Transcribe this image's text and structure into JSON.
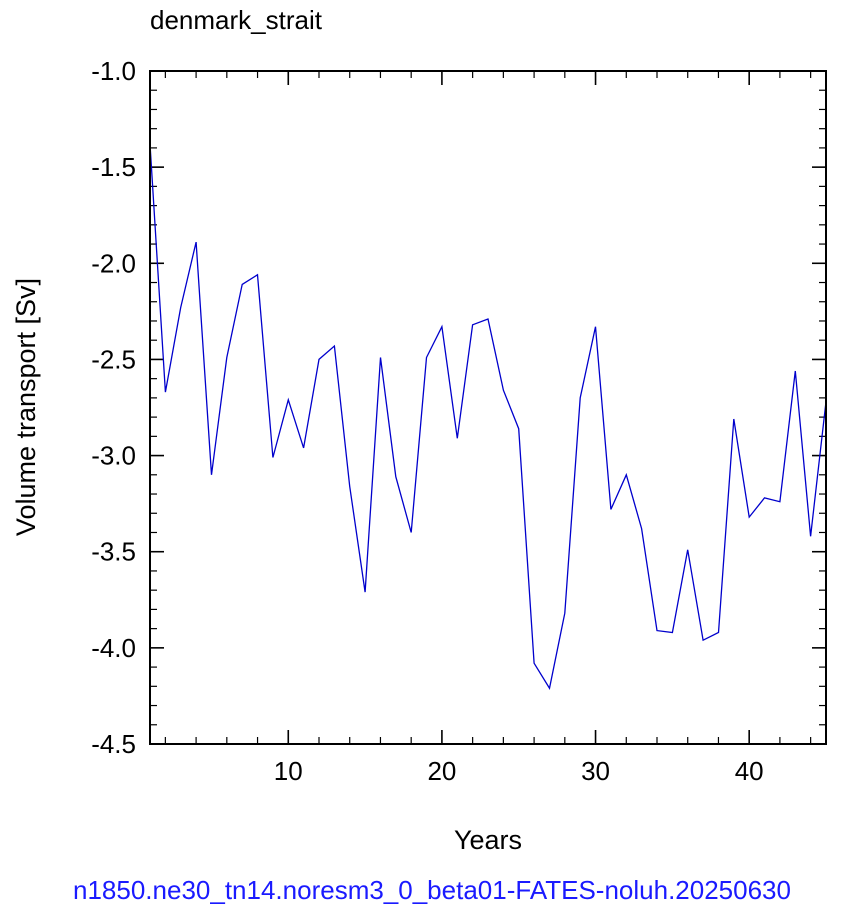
{
  "chart_data": {
    "type": "line",
    "title": "denmark_strait",
    "xlabel": "Years",
    "ylabel": "Volume transport [Sv]",
    "footer": "n1850.ne30_tn14.noresm3_0_beta01-FATES-noluh.20250630",
    "xlim": [
      1,
      45
    ],
    "ylim": [
      -4.5,
      -1.0
    ],
    "x_ticks": [
      10,
      20,
      30,
      40
    ],
    "y_ticks": [
      -1.0,
      -1.5,
      -2.0,
      -2.5,
      -3.0,
      -3.5,
      -4.0,
      -4.5
    ],
    "x_tick_labels": [
      "10",
      "20",
      "30",
      "40"
    ],
    "y_tick_labels": [
      "-1.0",
      "-1.5",
      "-2.0",
      "-2.5",
      "-3.0",
      "-3.5",
      "-4.0",
      "-4.5"
    ],
    "grid": false,
    "line_color": "#0000cc",
    "series": [
      {
        "x": [
          1,
          2,
          3,
          4,
          5,
          6,
          7,
          8,
          9,
          10,
          11,
          12,
          13,
          14,
          15,
          16,
          17,
          18,
          19,
          20,
          21,
          22,
          23,
          24,
          25,
          26,
          27,
          28,
          29,
          30,
          31,
          32,
          33,
          34,
          35,
          36,
          37,
          38,
          39,
          40,
          41,
          42,
          43,
          44,
          45
        ],
        "values": [
          -1.38,
          -2.67,
          -2.23,
          -1.89,
          -3.1,
          -2.49,
          -2.11,
          -2.06,
          -3.01,
          -2.71,
          -2.96,
          -2.5,
          -2.43,
          -3.16,
          -3.71,
          -2.49,
          -3.11,
          -3.4,
          -2.49,
          -2.33,
          -2.91,
          -2.32,
          -2.29,
          -2.66,
          -2.86,
          -4.08,
          -4.21,
          -3.82,
          -2.7,
          -2.33,
          -3.28,
          -3.1,
          -3.38,
          -3.91,
          -3.92,
          -3.49,
          -3.96,
          -3.92,
          -2.81,
          -3.32,
          -3.22,
          -3.24,
          -2.56,
          -3.42,
          -2.72
        ]
      }
    ]
  }
}
